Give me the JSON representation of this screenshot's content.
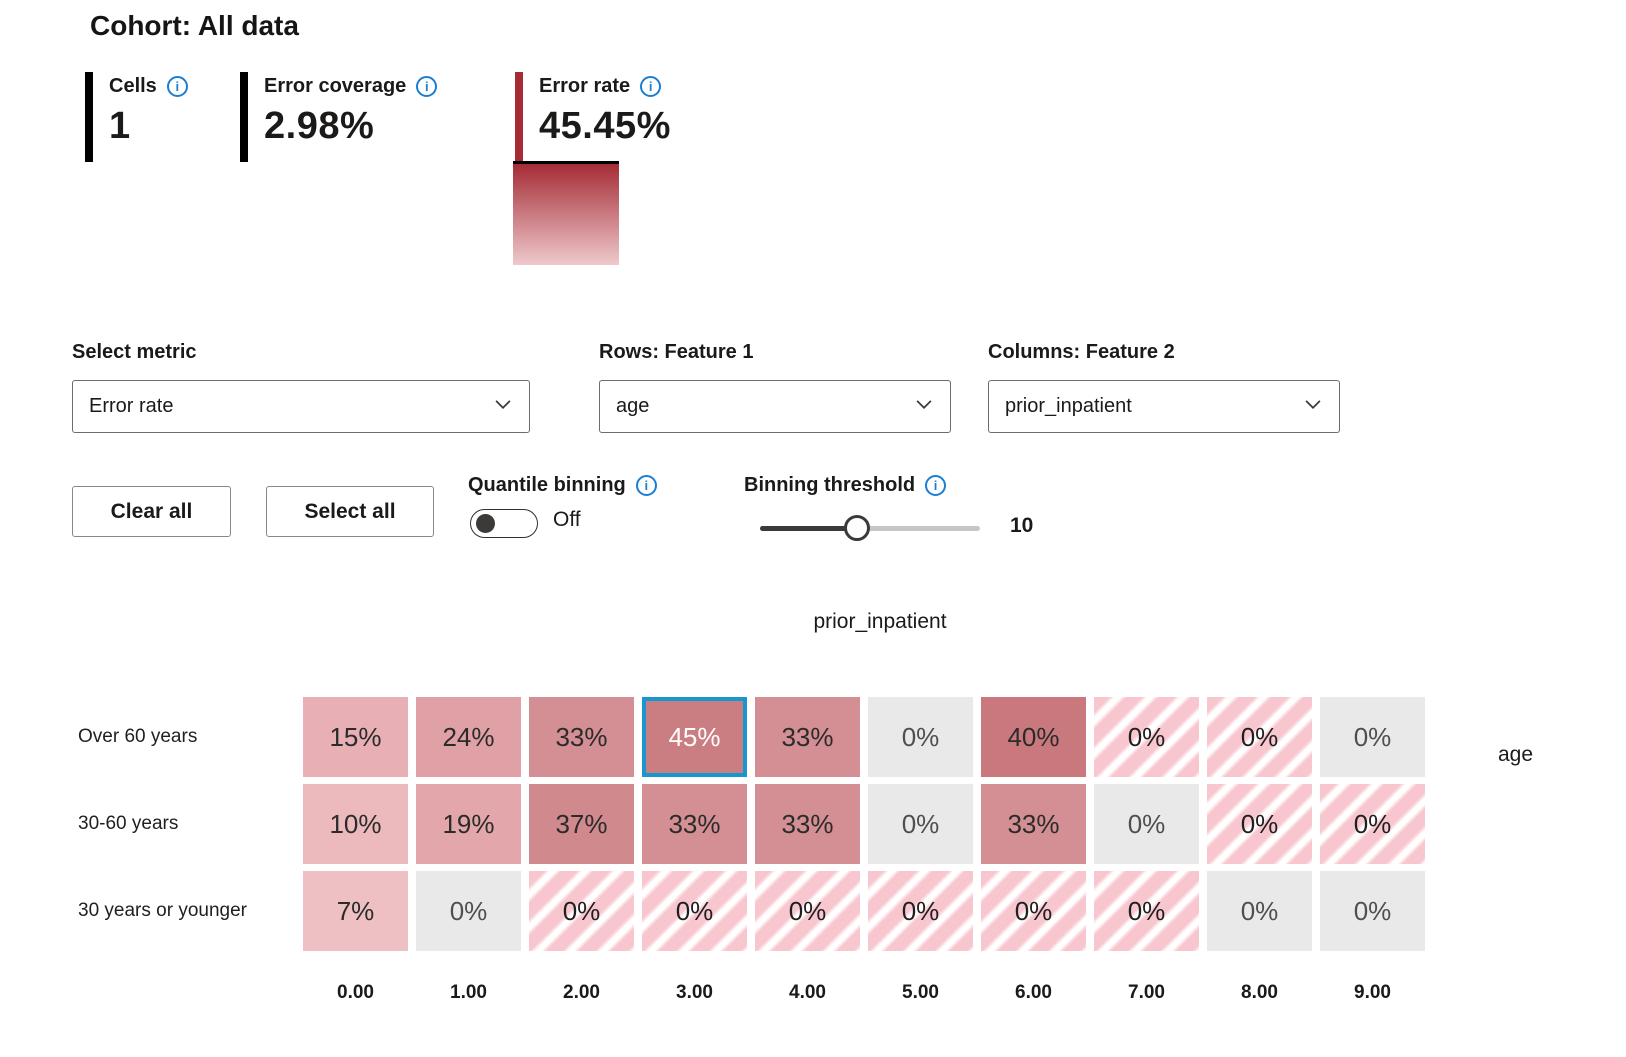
{
  "header": {
    "title": "Cohort: All data",
    "stats": [
      {
        "label": "Cells",
        "value": "1",
        "bar_color": "#000000"
      },
      {
        "label": "Error coverage",
        "value": "2.98%",
        "bar_color": "#000000"
      },
      {
        "label": "Error rate",
        "value": "45.45%",
        "bar_color": "#a52c35"
      }
    ]
  },
  "controls": {
    "metric": {
      "label": "Select metric",
      "value": "Error rate"
    },
    "rows_feature": {
      "label": "Rows: Feature 1",
      "value": "age"
    },
    "cols_feature": {
      "label": "Columns: Feature 2",
      "value": "prior_inpatient"
    },
    "clear_all_label": "Clear all",
    "select_all_label": "Select all",
    "quantile_binning": {
      "label": "Quantile binning",
      "state": "Off"
    },
    "binning_threshold": {
      "label": "Binning threshold",
      "value": "10",
      "percent": 44
    }
  },
  "icons": {
    "info_glyph": "i"
  },
  "chart_data": {
    "type": "heatmap",
    "x_axis_label": "prior_inpatient",
    "y_axis_label": "age",
    "columns": [
      "0.00",
      "1.00",
      "2.00",
      "3.00",
      "4.00",
      "5.00",
      "6.00",
      "7.00",
      "8.00",
      "9.00"
    ],
    "rows": [
      "Over 60 years",
      "30-60 years",
      "30 years or younger"
    ],
    "values_percent": [
      [
        15,
        24,
        33,
        45,
        33,
        0,
        40,
        0,
        0,
        0
      ],
      [
        10,
        19,
        37,
        33,
        33,
        0,
        33,
        0,
        0,
        0
      ],
      [
        7,
        0,
        0,
        0,
        0,
        0,
        0,
        0,
        0,
        0
      ]
    ],
    "cells": [
      [
        {
          "display": "15%",
          "kind": "shaded",
          "color": "#e8b0b4"
        },
        {
          "display": "24%",
          "kind": "shaded",
          "color": "#dfa1a5"
        },
        {
          "display": "33%",
          "kind": "shaded",
          "color": "#d38f93"
        },
        {
          "display": "45%",
          "kind": "shaded",
          "color": "#cb7e82"
        },
        {
          "display": "33%",
          "kind": "shaded",
          "color": "#d38f93"
        },
        {
          "display": "0%",
          "kind": "empty"
        },
        {
          "display": "40%",
          "kind": "shaded",
          "color": "#c9797e"
        },
        {
          "display": "0%",
          "kind": "striped"
        },
        {
          "display": "0%",
          "kind": "striped"
        },
        {
          "display": "0%",
          "kind": "empty"
        }
      ],
      [
        {
          "display": "10%",
          "kind": "shaded",
          "color": "#ecbabd"
        },
        {
          "display": "19%",
          "kind": "shaded",
          "color": "#e3a7ab"
        },
        {
          "display": "37%",
          "kind": "shaded",
          "color": "#d0898d"
        },
        {
          "display": "33%",
          "kind": "shaded",
          "color": "#d38f93"
        },
        {
          "display": "33%",
          "kind": "shaded",
          "color": "#d38f93"
        },
        {
          "display": "0%",
          "kind": "empty"
        },
        {
          "display": "33%",
          "kind": "shaded",
          "color": "#d38f93"
        },
        {
          "display": "0%",
          "kind": "empty"
        },
        {
          "display": "0%",
          "kind": "striped"
        },
        {
          "display": "0%",
          "kind": "striped"
        }
      ],
      [
        {
          "display": "7%",
          "kind": "shaded",
          "color": "#eec0c3"
        },
        {
          "display": "0%",
          "kind": "empty"
        },
        {
          "display": "0%",
          "kind": "striped"
        },
        {
          "display": "0%",
          "kind": "striped"
        },
        {
          "display": "0%",
          "kind": "striped"
        },
        {
          "display": "0%",
          "kind": "striped"
        },
        {
          "display": "0%",
          "kind": "striped"
        },
        {
          "display": "0%",
          "kind": "striped"
        },
        {
          "display": "0%",
          "kind": "empty"
        },
        {
          "display": "0%",
          "kind": "empty"
        }
      ]
    ],
    "selected": {
      "row": 0,
      "col": 3
    },
    "legend": {
      "high_color": "#a52c35",
      "low_color": "#eec9cc"
    },
    "empty_cell_color": "#e9e9e9",
    "stripe_color": "#f8c6ce",
    "selection_border_color": "#1796cf"
  }
}
